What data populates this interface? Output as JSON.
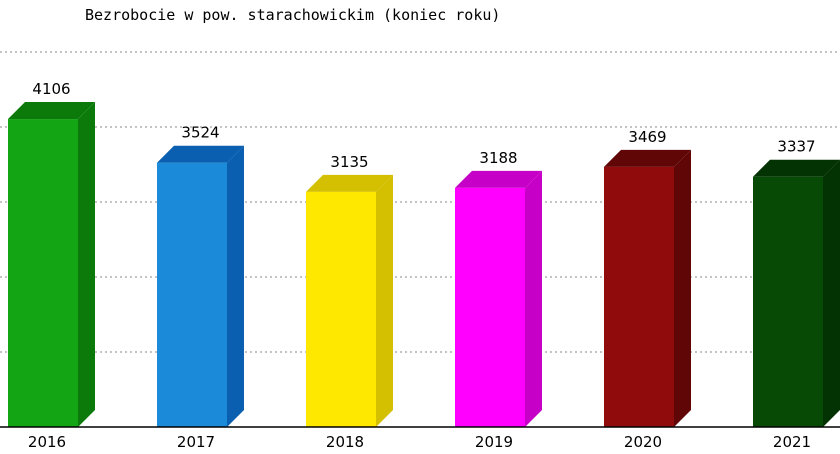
{
  "chart_data": {
    "type": "bar",
    "title": "Bezrobocie w pow. starachowickim (koniec roku)",
    "categories": [
      "2016",
      "2017",
      "2018",
      "2019",
      "2020",
      "2021"
    ],
    "values": [
      4106,
      3524,
      3135,
      3188,
      3469,
      3337
    ],
    "xlabel": "",
    "ylabel": "",
    "ylim": [
      0,
      5000
    ],
    "grid": true,
    "legend": "none",
    "colors": [
      {
        "front": "#14a514",
        "side": "#0b7a0b"
      },
      {
        "front": "#1a8ad9",
        "side": "#0a5fb0"
      },
      {
        "front": "#ffe800",
        "side": "#d4c000"
      },
      {
        "front": "#ff00ff",
        "side": "#c600c6"
      },
      {
        "front": "#900c0c",
        "side": "#600606"
      },
      {
        "front": "#064a06",
        "side": "#033203"
      }
    ]
  }
}
